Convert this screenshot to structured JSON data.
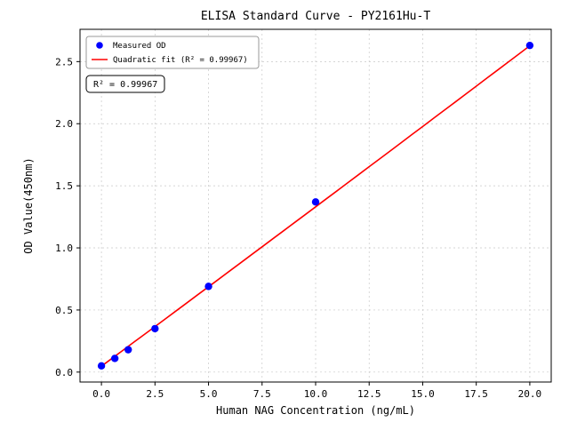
{
  "chart_data": {
    "type": "scatter",
    "title": "ELISA Standard Curve - PY2161Hu-T",
    "xlabel": "Human NAG Concentration (ng/mL)",
    "ylabel": "OD Value(450nm)",
    "xlim": [
      -1.0,
      21.0
    ],
    "ylim": [
      -0.08,
      2.76
    ],
    "x_ticks": [
      0.0,
      2.5,
      5.0,
      7.5,
      10.0,
      12.5,
      15.0,
      17.5,
      20.0
    ],
    "x_tick_labels": [
      "0.0",
      "2.5",
      "5.0",
      "7.5",
      "10.0",
      "12.5",
      "15.0",
      "17.5",
      "20.0"
    ],
    "y_ticks": [
      0.0,
      0.5,
      1.0,
      1.5,
      2.0,
      2.5
    ],
    "y_tick_labels": [
      "0.0",
      "0.5",
      "1.0",
      "1.5",
      "2.0",
      "2.5"
    ],
    "grid": true,
    "points": {
      "x": [
        0.0,
        0.625,
        1.25,
        2.5,
        5.0,
        10.0,
        20.0
      ],
      "y": [
        0.05,
        0.11,
        0.18,
        0.35,
        0.69,
        1.37,
        2.63
      ]
    },
    "fit": {
      "type": "quadratic",
      "a": 6.7e-05,
      "b": 0.1277,
      "c": 0.047,
      "x_range": [
        0,
        20
      ]
    },
    "legend": [
      {
        "label": "Measured OD",
        "marker": "dot",
        "color": "#0000ff"
      },
      {
        "label": "Quadratic fit (R² = 0.99967)",
        "marker": "line",
        "color": "#ff0000"
      }
    ],
    "annotation": "R² = 0.99967",
    "colors": {
      "points": "#0000ff",
      "line": "#ff0000",
      "grid": "#c8c8c8",
      "axis": "#000000",
      "legend_border": "#999999"
    }
  }
}
